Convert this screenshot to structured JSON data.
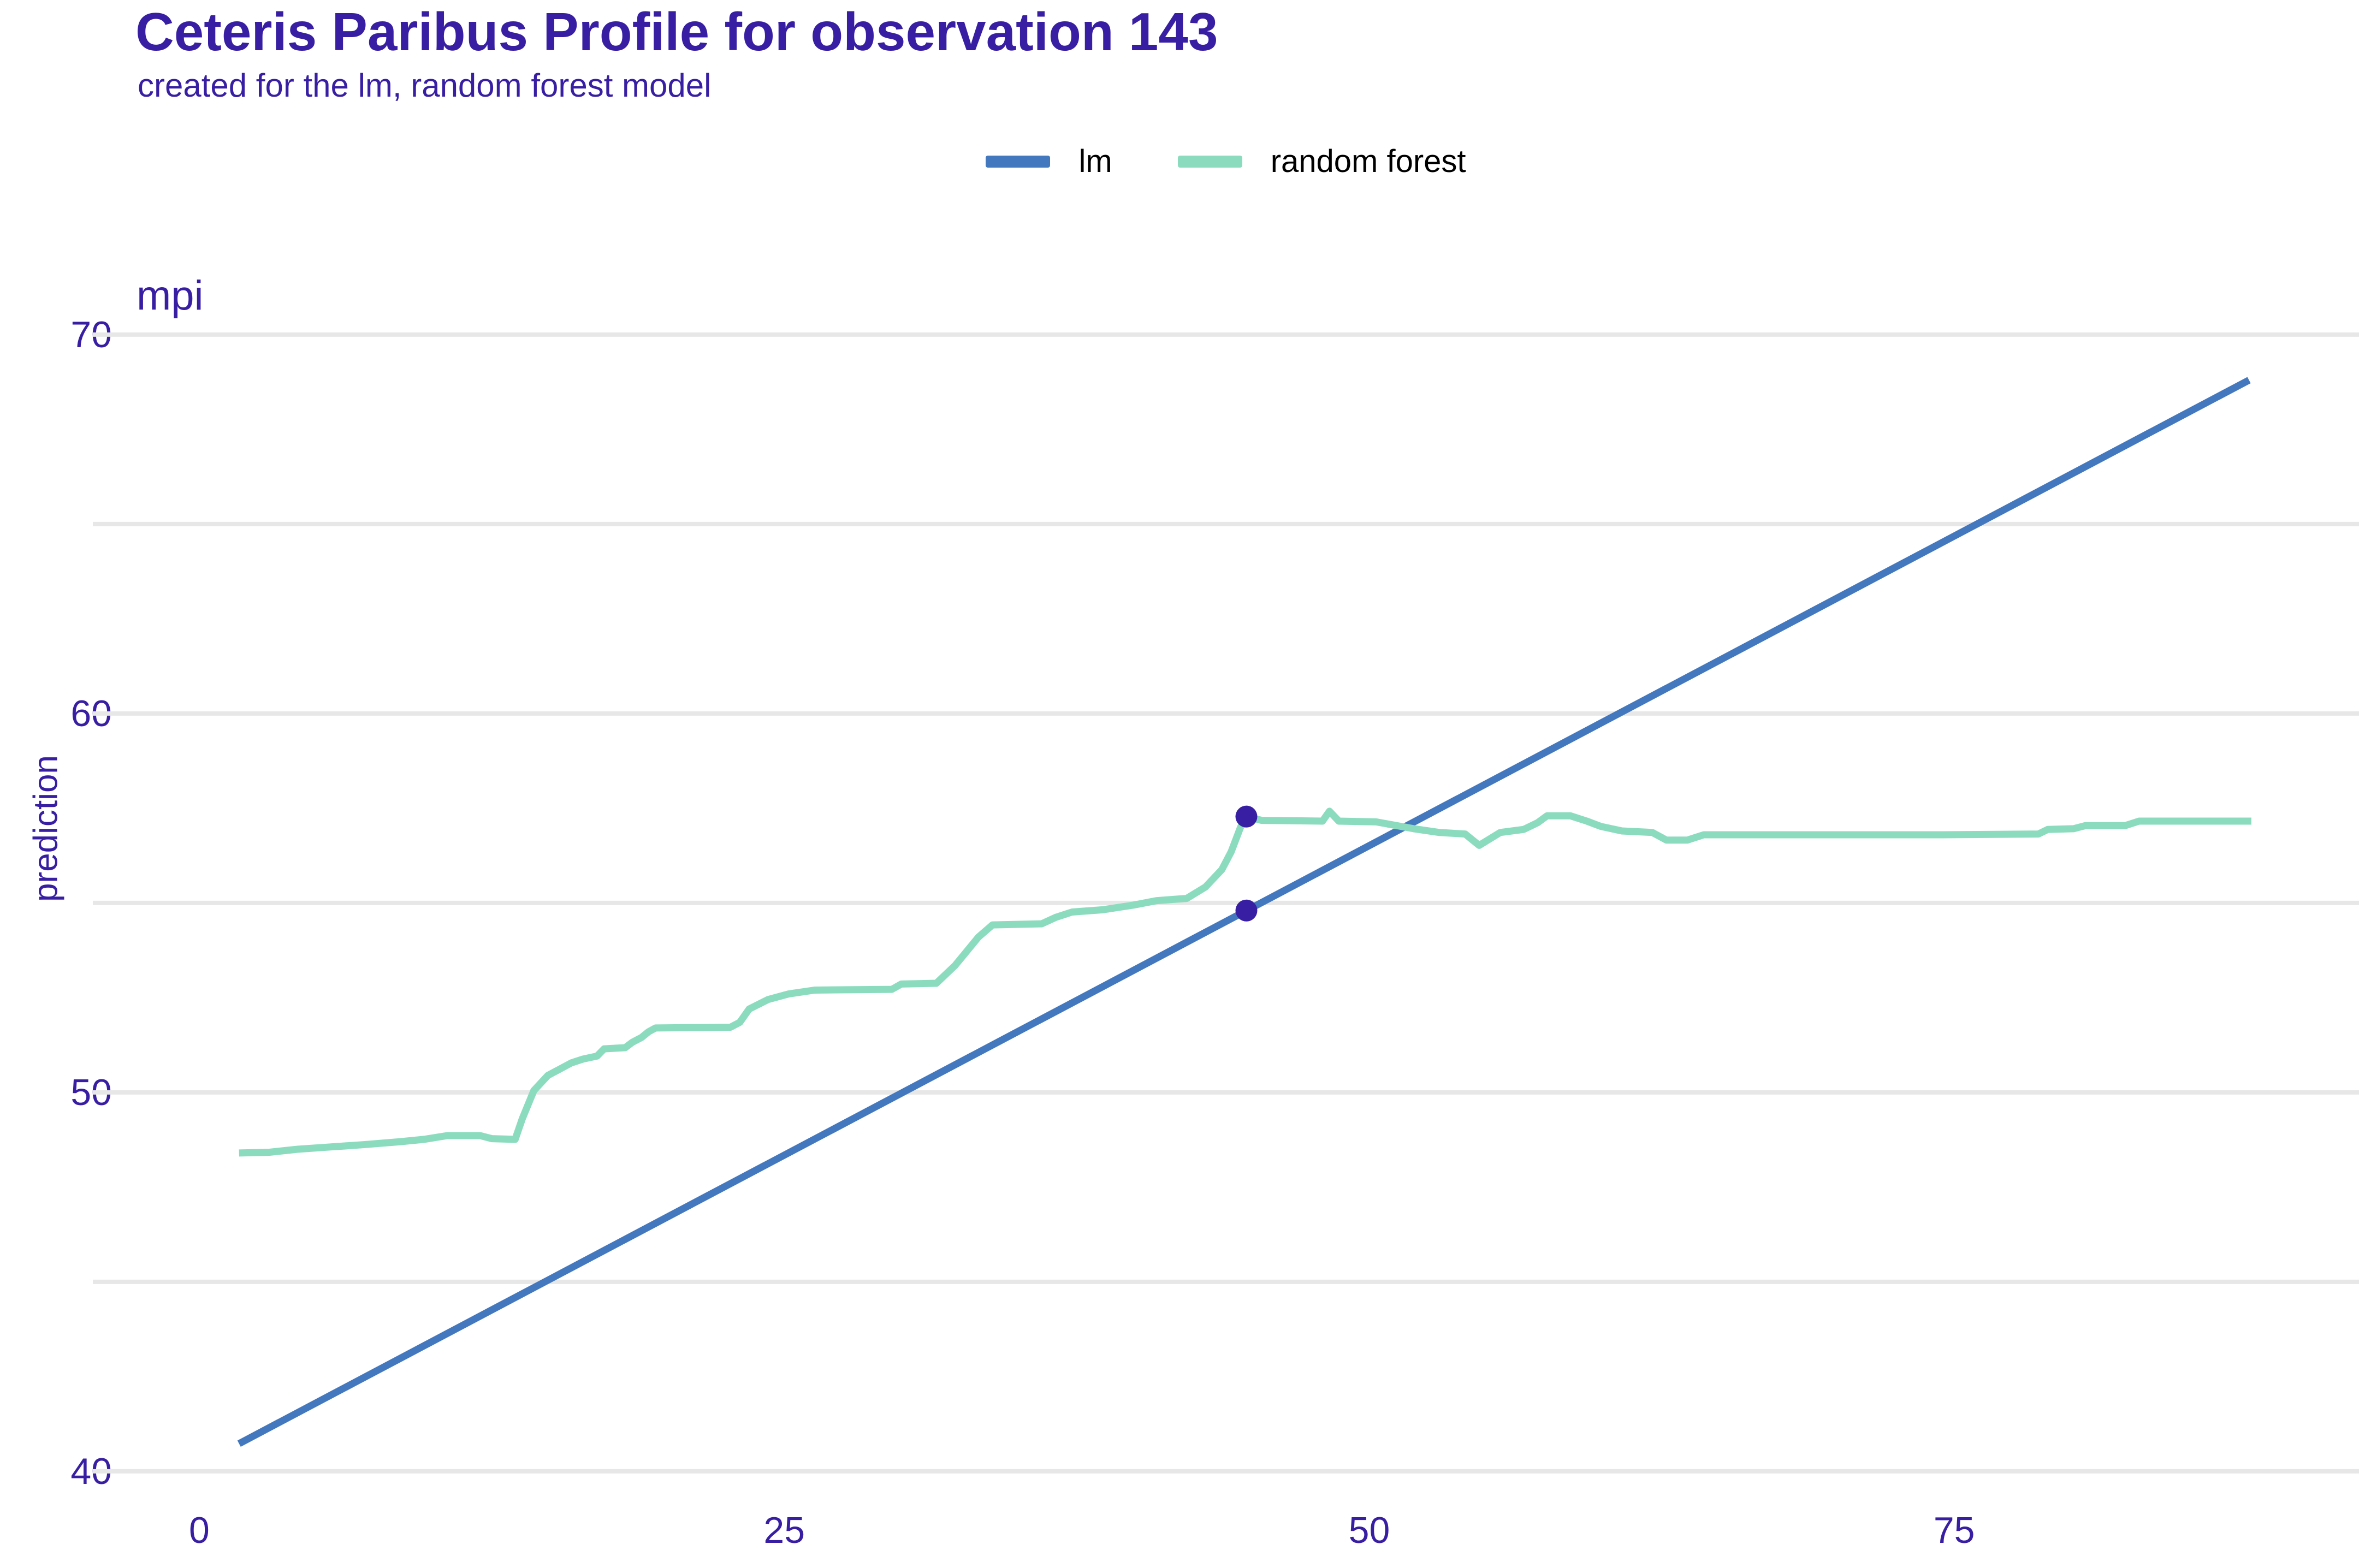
{
  "header": {
    "title": "Ceteris Paribus Profile for observation 143",
    "subtitle": "created for the lm, random forest model"
  },
  "facet_label": "mpi",
  "y_axis_label": "prediction",
  "legend": {
    "position": "top-center",
    "items": [
      {
        "label": "lm",
        "color": "#4378bf"
      },
      {
        "label": "random forest",
        "color": "#8bdcbe"
      }
    ]
  },
  "colors": {
    "accent_text": "#371ea3",
    "legend_text": "#000000",
    "grid": "#e7e7e7",
    "background": "#ffffff",
    "lm_line": "#4378bf",
    "random_forest_line": "#8bdcbe",
    "marker": "#371ea3"
  },
  "chart_data": {
    "type": "line",
    "title": "Ceteris Paribus Profile for observation 143",
    "subtitle": "created for the lm, random forest model",
    "facet": "mpi",
    "xlabel": "",
    "ylabel": "prediction",
    "grid": "horizontal-only",
    "legend_position": "top-center",
    "x_ticks": [
      0,
      25,
      50,
      75
    ],
    "y_ticks": [
      40,
      50,
      60,
      70
    ],
    "y_grid": [
      40,
      45,
      50,
      55,
      60,
      65,
      70
    ],
    "x_domain": [
      -4.55,
      92.3
    ],
    "y_domain": [
      39.35,
      71.05
    ],
    "series": [
      {
        "name": "lm",
        "color": "#4378bf",
        "points": [
          [
            1.7,
            40.73
          ],
          [
            87.6,
            68.8
          ]
        ]
      },
      {
        "name": "random forest",
        "color": "#8bdcbe",
        "points": [
          [
            1.7,
            48.4
          ],
          [
            3.0,
            48.42
          ],
          [
            4.2,
            48.5
          ],
          [
            5.6,
            48.56
          ],
          [
            7.0,
            48.62
          ],
          [
            8.6,
            48.7
          ],
          [
            9.6,
            48.76
          ],
          [
            10.6,
            48.86
          ],
          [
            12.0,
            48.86
          ],
          [
            12.5,
            48.78
          ],
          [
            13.5,
            48.76
          ],
          [
            13.8,
            49.3
          ],
          [
            14.3,
            50.05
          ],
          [
            14.9,
            50.45
          ],
          [
            15.3,
            50.58
          ],
          [
            15.9,
            50.78
          ],
          [
            16.4,
            50.88
          ],
          [
            17.0,
            50.96
          ],
          [
            17.3,
            51.15
          ],
          [
            18.2,
            51.18
          ],
          [
            18.5,
            51.32
          ],
          [
            18.9,
            51.45
          ],
          [
            19.2,
            51.6
          ],
          [
            19.5,
            51.7
          ],
          [
            22.7,
            51.72
          ],
          [
            23.1,
            51.85
          ],
          [
            23.5,
            52.2
          ],
          [
            24.3,
            52.45
          ],
          [
            25.2,
            52.6
          ],
          [
            26.3,
            52.7
          ],
          [
            29.6,
            52.72
          ],
          [
            30.0,
            52.86
          ],
          [
            31.5,
            52.88
          ],
          [
            32.3,
            53.35
          ],
          [
            33.3,
            54.1
          ],
          [
            33.9,
            54.42
          ],
          [
            36.0,
            54.45
          ],
          [
            36.6,
            54.62
          ],
          [
            37.3,
            54.76
          ],
          [
            38.6,
            54.82
          ],
          [
            39.9,
            54.94
          ],
          [
            40.9,
            55.06
          ],
          [
            42.2,
            55.12
          ],
          [
            43.0,
            55.42
          ],
          [
            43.7,
            55.88
          ],
          [
            44.1,
            56.35
          ],
          [
            44.5,
            57.0
          ],
          [
            44.75,
            57.28
          ],
          [
            45.4,
            57.18
          ],
          [
            48.0,
            57.16
          ],
          [
            48.3,
            57.42
          ],
          [
            48.7,
            57.16
          ],
          [
            50.3,
            57.14
          ],
          [
            51.0,
            57.06
          ],
          [
            51.9,
            56.96
          ],
          [
            53.0,
            56.86
          ],
          [
            54.1,
            56.82
          ],
          [
            54.7,
            56.52
          ],
          [
            55.6,
            56.86
          ],
          [
            56.6,
            56.94
          ],
          [
            57.2,
            57.12
          ],
          [
            57.6,
            57.3
          ],
          [
            58.6,
            57.3
          ],
          [
            59.3,
            57.16
          ],
          [
            59.9,
            57.02
          ],
          [
            60.8,
            56.9
          ],
          [
            62.1,
            56.86
          ],
          [
            62.7,
            56.66
          ],
          [
            63.6,
            56.66
          ],
          [
            64.3,
            56.8
          ],
          [
            70.0,
            56.8
          ],
          [
            74.5,
            56.8
          ],
          [
            78.6,
            56.82
          ],
          [
            79.0,
            56.94
          ],
          [
            80.1,
            56.96
          ],
          [
            80.6,
            57.04
          ],
          [
            82.3,
            57.04
          ],
          [
            82.9,
            57.16
          ],
          [
            85.0,
            57.16
          ],
          [
            87.7,
            57.16
          ]
        ]
      }
    ],
    "markers": {
      "color": "#371ea3",
      "radius": 20,
      "points": [
        [
          44.75,
          54.8
        ],
        [
          44.75,
          57.28
        ]
      ]
    }
  }
}
